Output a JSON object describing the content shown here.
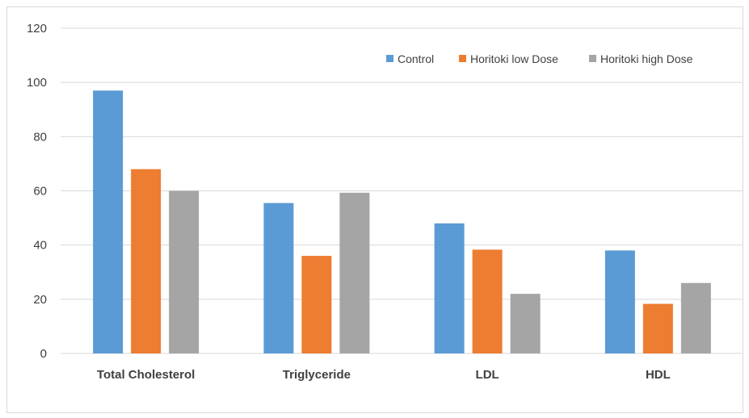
{
  "chart_data": {
    "type": "bar",
    "categories": [
      "Total Cholesterol",
      "Triglyceride",
      "LDL",
      "HDL"
    ],
    "series": [
      {
        "name": "Control",
        "color": "#5b9bd5",
        "values": [
          97,
          55.5,
          48,
          38
        ]
      },
      {
        "name": "Horitoki low Dose",
        "color": "#ed7d31",
        "values": [
          68,
          36,
          38.3,
          18.3
        ]
      },
      {
        "name": "Horitoki high Dose",
        "color": "#a5a5a5",
        "values": [
          60,
          59.3,
          22,
          26
        ]
      }
    ],
    "title": "",
    "xlabel": "",
    "ylabel": "",
    "ylim": [
      0,
      120
    ],
    "yticks": [
      "0",
      "20",
      "40",
      "60",
      "80",
      "100",
      "120"
    ],
    "grid": true,
    "legend_position": "top-right"
  }
}
